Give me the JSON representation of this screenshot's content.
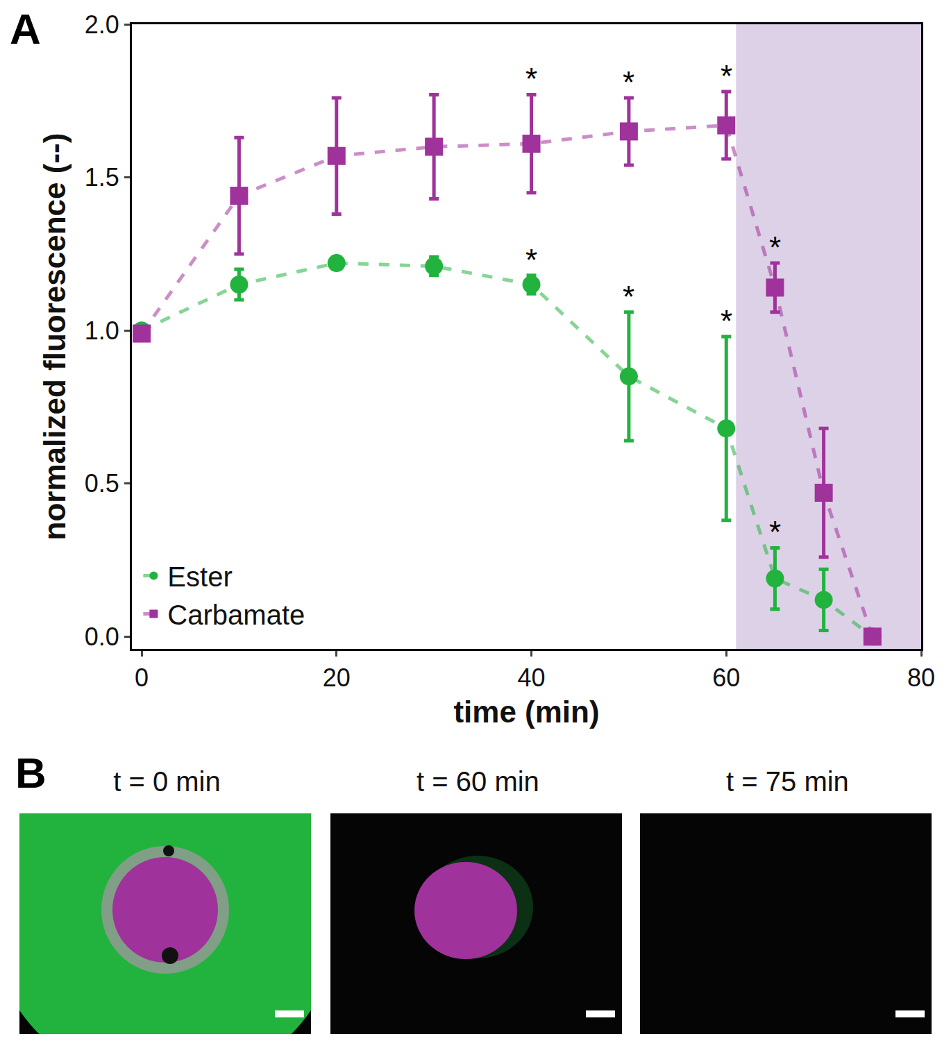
{
  "chart_data": {
    "type": "line",
    "panel_label": "A",
    "x_label": "time (min)",
    "y_label": "normalized fluorescence (--)",
    "xlim": [
      -1,
      80
    ],
    "ylim": [
      -0.04,
      2.0
    ],
    "xticks": [
      0,
      20,
      40,
      60,
      80
    ],
    "yticks": [
      {
        "value": 0,
        "label": "0.0"
      },
      {
        "value": 0.5,
        "label": "0.5"
      },
      {
        "value": 1,
        "label": "1.0"
      },
      {
        "value": 1.5,
        "label": "1.5"
      },
      {
        "value": 2,
        "label": "2.0"
      }
    ],
    "grid": false,
    "legend": "lower left",
    "line_style": "dashed",
    "x": [
      0,
      10,
      20,
      30,
      40,
      50,
      60,
      65,
      70,
      75
    ],
    "series": [
      {
        "name": "Ester",
        "color": "#22b33f",
        "marker": "circle",
        "values": [
          1.0,
          1.15,
          1.22,
          1.21,
          1.15,
          0.85,
          0.68,
          0.19,
          0.12,
          0.0
        ],
        "error": [
          0,
          0.05,
          0.02,
          0.03,
          0.03,
          0.21,
          0.3,
          0.1,
          0.1,
          0
        ],
        "significant": [
          40,
          50,
          60,
          65
        ]
      },
      {
        "name": "Carbamate",
        "color": "#a0329b",
        "marker": "square",
        "values": [
          0.99,
          1.44,
          1.57,
          1.6,
          1.61,
          1.65,
          1.67,
          1.14,
          0.47,
          0.0
        ],
        "error": [
          0,
          0.19,
          0.19,
          0.17,
          0.16,
          0.11,
          0.11,
          0.08,
          0.21,
          0
        ],
        "significant": [
          40,
          50,
          60,
          65
        ]
      }
    ],
    "significance_mark": "*",
    "highlight": {
      "x": [
        61,
        80
      ],
      "color": "#ddd1e7"
    }
  },
  "panel_b": {
    "panel_label": "B",
    "images": [
      {
        "title": "t = 0 min"
      },
      {
        "title": "t = 60 min"
      },
      {
        "title": "t = 75 min"
      }
    ]
  }
}
